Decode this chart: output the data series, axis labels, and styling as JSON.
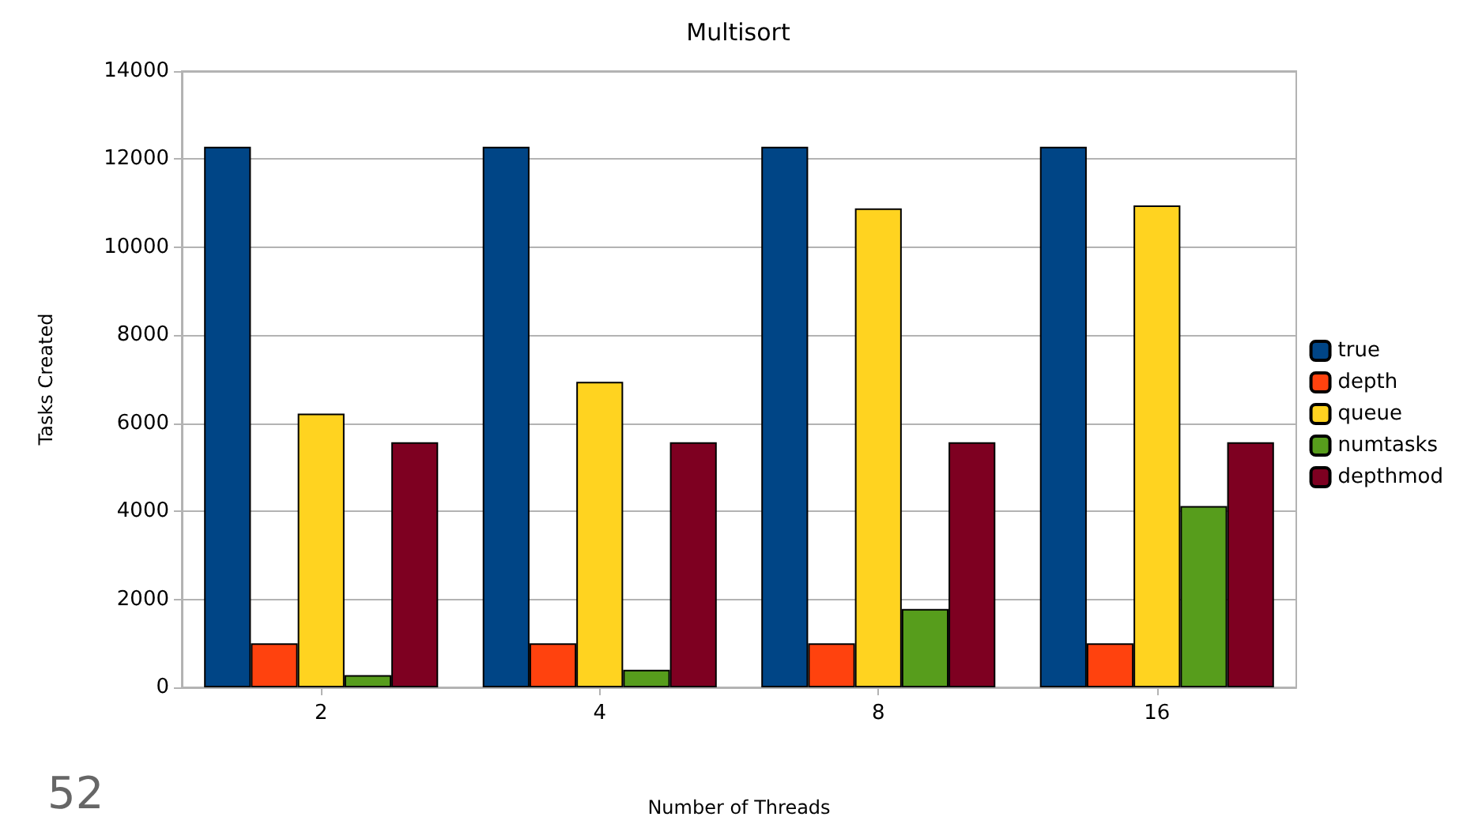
{
  "chart_data": {
    "type": "bar",
    "title": "Multisort",
    "xlabel": "Number of Threads",
    "ylabel": "Tasks Created",
    "categories": [
      "2",
      "4",
      "8",
      "16"
    ],
    "series": [
      {
        "name": "true",
        "color": "#004586",
        "values": [
          12280,
          12280,
          12280,
          12280
        ]
      },
      {
        "name": "depth",
        "color": "#ff420e",
        "values": [
          1000,
          1000,
          1000,
          1000
        ]
      },
      {
        "name": "queue",
        "color": "#ffd320",
        "values": [
          6220,
          6940,
          10880,
          10950
        ]
      },
      {
        "name": "numtasks",
        "color": "#579d1c",
        "values": [
          280,
          400,
          1780,
          4120
        ]
      },
      {
        "name": "depthmod",
        "color": "#7e0021",
        "values": [
          5570,
          5570,
          5570,
          5570
        ]
      }
    ],
    "ylim": [
      0,
      14000
    ],
    "yticks": [
      0,
      2000,
      4000,
      6000,
      8000,
      10000,
      12000,
      14000
    ],
    "grid": "y",
    "legend": "right",
    "annotations": [
      "52"
    ]
  }
}
